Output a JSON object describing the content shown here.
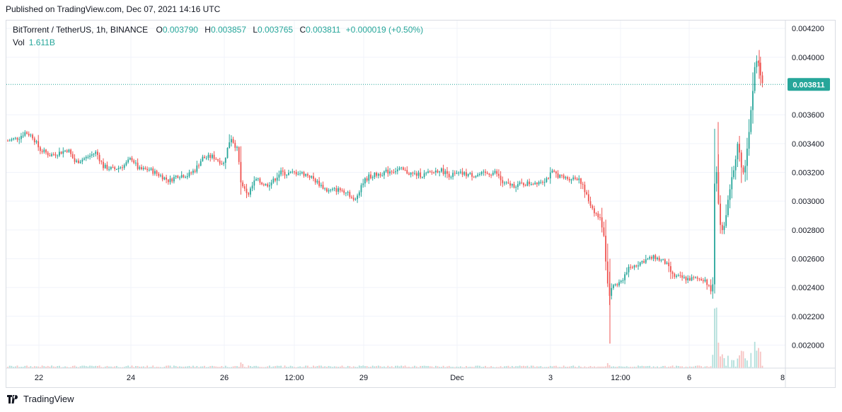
{
  "header": {
    "published": "Published on TradingView.com, Dec 07, 2021 14:16 UTC"
  },
  "legend": {
    "symbol": "BitTorrent / TetherUS, 1h, BINANCE",
    "open_label": "O",
    "open": "0.003790",
    "high_label": "H",
    "high": "0.003857",
    "low_label": "L",
    "low": "0.003765",
    "close_label": "C",
    "close": "0.003811",
    "change": "+0.000019 (+0.50%)",
    "vol_label": "Vol",
    "vol_value": "1.611B"
  },
  "footer": {
    "brand": "TradingView"
  },
  "colors": {
    "up": "#26a69a",
    "down": "#ef5350",
    "grid": "#f0f3fa",
    "last_price_tag": "#26a69a"
  },
  "chart_data": {
    "type": "candlestick",
    "symbol": "BitTorrent / TetherUS",
    "interval": "1h",
    "exchange": "BINANCE",
    "ylim": [
      0.00184,
      0.00425
    ],
    "y_ticks": [
      "0.004200",
      "0.004000",
      "0.003600",
      "0.003400",
      "0.003200",
      "0.003000",
      "0.002800",
      "0.002600",
      "0.002400",
      "0.002200",
      "0.002000"
    ],
    "x_ticks": [
      "22",
      "24",
      "26",
      "12:00",
      "29",
      "Dec",
      "3",
      "12:00",
      "6",
      "8"
    ],
    "last_price": "0.003811",
    "last_price_value": 0.003811,
    "grid": true,
    "close_path": [
      [
        0,
        0.00342
      ],
      [
        15,
        0.00344
      ],
      [
        25,
        0.00348
      ],
      [
        35,
        0.00345
      ],
      [
        45,
        0.00336
      ],
      [
        60,
        0.00332
      ],
      [
        75,
        0.00334
      ],
      [
        85,
        0.00336
      ],
      [
        95,
        0.00327
      ],
      [
        110,
        0.0033
      ],
      [
        125,
        0.00334
      ],
      [
        135,
        0.00324
      ],
      [
        150,
        0.00322
      ],
      [
        165,
        0.00325
      ],
      [
        175,
        0.0033
      ],
      [
        185,
        0.00322
      ],
      [
        200,
        0.00322
      ],
      [
        215,
        0.00318
      ],
      [
        228,
        0.00314
      ],
      [
        240,
        0.00318
      ],
      [
        255,
        0.00318
      ],
      [
        265,
        0.00322
      ],
      [
        275,
        0.0033
      ],
      [
        290,
        0.00331
      ],
      [
        305,
        0.00326
      ],
      [
        315,
        0.00345
      ],
      [
        325,
        0.00335
      ],
      [
        330,
        0.0031
      ],
      [
        340,
        0.00305
      ],
      [
        350,
        0.00315
      ],
      [
        365,
        0.00311
      ],
      [
        375,
        0.00314
      ],
      [
        385,
        0.0032
      ],
      [
        395,
        0.00319
      ],
      [
        410,
        0.0032
      ],
      [
        425,
        0.00318
      ],
      [
        440,
        0.00312
      ],
      [
        452,
        0.00307
      ],
      [
        465,
        0.00308
      ],
      [
        480,
        0.00307
      ],
      [
        490,
        0.00299
      ],
      [
        500,
        0.00312
      ],
      [
        510,
        0.00317
      ],
      [
        525,
        0.00319
      ],
      [
        540,
        0.00321
      ],
      [
        555,
        0.00322
      ],
      [
        570,
        0.00319
      ],
      [
        585,
        0.00318
      ],
      [
        600,
        0.0032
      ],
      [
        610,
        0.00322
      ],
      [
        625,
        0.00318
      ],
      [
        640,
        0.00319
      ],
      [
        660,
        0.00318
      ],
      [
        675,
        0.00319
      ],
      [
        690,
        0.0032
      ],
      [
        700,
        0.00312
      ],
      [
        715,
        0.00311
      ],
      [
        730,
        0.00312
      ],
      [
        745,
        0.00313
      ],
      [
        760,
        0.00315
      ],
      [
        770,
        0.0032
      ],
      [
        785,
        0.00316
      ],
      [
        800,
        0.00316
      ],
      [
        808,
        0.00316
      ],
      [
        815,
        0.00307
      ],
      [
        822,
        0.00299
      ],
      [
        830,
        0.00292
      ],
      [
        838,
        0.00287
      ],
      [
        843,
        0.00275
      ],
      [
        847,
        0.00245
      ],
      [
        851,
        0.00233
      ],
      [
        855,
        0.00242
      ],
      [
        865,
        0.00242
      ],
      [
        875,
        0.00252
      ],
      [
        885,
        0.00255
      ],
      [
        900,
        0.00259
      ],
      [
        915,
        0.00261
      ],
      [
        930,
        0.00257
      ],
      [
        940,
        0.00248
      ],
      [
        950,
        0.00247
      ],
      [
        960,
        0.00246
      ],
      [
        975,
        0.00246
      ],
      [
        985,
        0.00246
      ],
      [
        992,
        0.00239
      ],
      [
        996,
        0.00235
      ],
      [
        1000,
        0.00338
      ],
      [
        1004,
        0.003
      ],
      [
        1008,
        0.0028
      ],
      [
        1013,
        0.00282
      ],
      [
        1018,
        0.003
      ],
      [
        1025,
        0.0032
      ],
      [
        1032,
        0.0034
      ],
      [
        1038,
        0.00318
      ],
      [
        1043,
        0.00327
      ],
      [
        1050,
        0.0036
      ],
      [
        1056,
        0.00395
      ],
      [
        1060,
        0.00398
      ],
      [
        1064,
        0.00386
      ],
      [
        1068,
        0.003811
      ]
    ],
    "volume_spikes": [
      [
        330,
        0.09
      ],
      [
        848,
        0.12
      ],
      [
        851,
        0.07
      ],
      [
        997,
        0.22
      ],
      [
        1000,
        1.0
      ],
      [
        1004,
        0.4
      ],
      [
        1008,
        0.3
      ],
      [
        1013,
        0.2
      ],
      [
        1018,
        0.26
      ],
      [
        1025,
        0.18
      ],
      [
        1032,
        0.25
      ],
      [
        1038,
        0.3
      ],
      [
        1043,
        0.2
      ],
      [
        1050,
        0.26
      ],
      [
        1056,
        0.45
      ],
      [
        1060,
        0.35
      ],
      [
        1064,
        0.3
      ]
    ]
  }
}
